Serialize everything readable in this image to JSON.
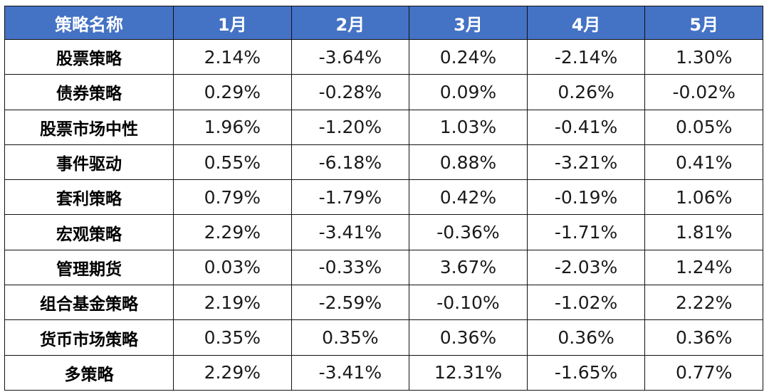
{
  "chart_data": {
    "type": "table",
    "columns": [
      "策略名称",
      "1月",
      "2月",
      "3月",
      "4月",
      "5月"
    ],
    "rows": [
      {
        "name": "股票策略",
        "values": [
          "2.14%",
          "-3.64%",
          "0.24%",
          "-2.14%",
          "1.30%"
        ]
      },
      {
        "name": "债券策略",
        "values": [
          "0.29%",
          "-0.28%",
          "0.09%",
          "0.26%",
          "-0.02%"
        ]
      },
      {
        "name": "股票市场中性",
        "values": [
          "1.96%",
          "-1.20%",
          "1.03%",
          "-0.41%",
          "0.05%"
        ]
      },
      {
        "name": "事件驱动",
        "values": [
          "0.55%",
          "-6.18%",
          "0.88%",
          "-3.21%",
          "0.41%"
        ]
      },
      {
        "name": "套利策略",
        "values": [
          "0.79%",
          "-1.79%",
          "0.42%",
          "-0.19%",
          "1.06%"
        ]
      },
      {
        "name": "宏观策略",
        "values": [
          "2.29%",
          "-3.41%",
          "-0.36%",
          "-1.71%",
          "1.81%"
        ]
      },
      {
        "name": "管理期货",
        "values": [
          "0.03%",
          "-0.33%",
          "3.67%",
          "-2.03%",
          "1.24%"
        ]
      },
      {
        "name": "组合基金策略",
        "values": [
          "2.19%",
          "-2.59%",
          "-0.10%",
          "-1.02%",
          "2.22%"
        ]
      },
      {
        "name": "货币市场策略",
        "values": [
          "0.35%",
          "0.35%",
          "0.36%",
          "0.36%",
          "0.36%"
        ]
      },
      {
        "name": "多策略",
        "values": [
          "2.29%",
          "-3.41%",
          "12.31%",
          "-1.65%",
          "0.77%"
        ]
      }
    ],
    "colors": {
      "header_bg": "#4472c4",
      "header_text": "#ffffff",
      "border": "#111111"
    }
  }
}
